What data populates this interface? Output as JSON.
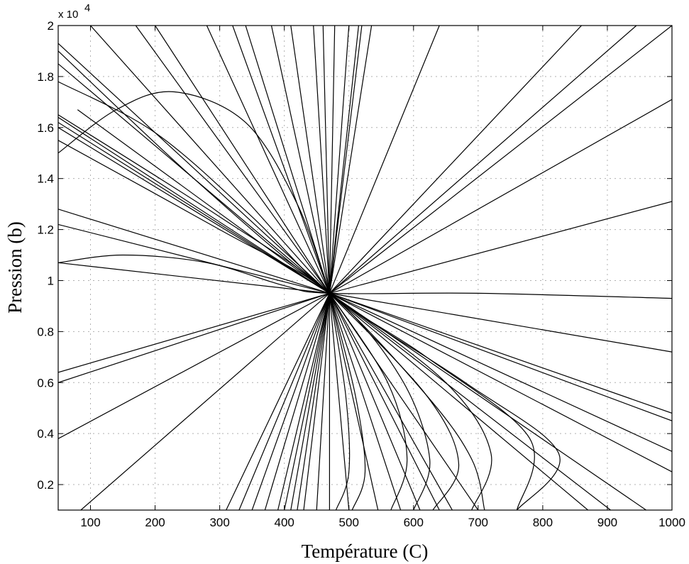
{
  "chart_data": {
    "type": "line",
    "title": "",
    "xlabel": "Température (C)",
    "ylabel": "Pression (b)",
    "y_multiplier_label": "x 10",
    "y_multiplier_exponent": "4",
    "xlim": [
      50,
      1000
    ],
    "ylim": [
      0.1,
      2.0
    ],
    "y_scale": 10000,
    "grid": true,
    "legend": "none",
    "invariant_point": {
      "x": 470,
      "y": 0.95
    },
    "x_ticks": [
      "100",
      "200",
      "300",
      "400",
      "500",
      "600",
      "700",
      "800",
      "900",
      "1000"
    ],
    "x_tick_values": [
      100,
      200,
      300,
      400,
      500,
      600,
      700,
      800,
      900,
      1000
    ],
    "y_ticks": [
      "0.2",
      "0.4",
      "0.6",
      "0.8",
      "1",
      "1.2",
      "1.4",
      "1.6",
      "1.8",
      "2"
    ],
    "y_tick_values": [
      0.2,
      0.4,
      0.6,
      0.8,
      1.0,
      1.2,
      1.4,
      1.6,
      1.8,
      2.0
    ],
    "series": [
      {
        "points": [
          [
            50,
            1.93
          ],
          [
            470,
            0.95
          ],
          [
            905,
            0.1
          ]
        ]
      },
      {
        "points": [
          [
            50,
            1.85
          ],
          [
            470,
            0.95
          ],
          [
            870,
            0.1
          ]
        ]
      },
      {
        "points": [
          [
            50,
            1.64
          ],
          [
            470,
            0.95
          ],
          [
            960,
            0.1
          ]
        ]
      },
      {
        "points": [
          [
            50,
            1.62
          ],
          [
            470,
            0.95
          ],
          [
            1000,
            0.48
          ]
        ]
      },
      {
        "points": [
          [
            50,
            1.6
          ],
          [
            470,
            0.95
          ],
          [
            1000,
            0.45
          ]
        ]
      },
      {
        "points": [
          [
            50,
            1.28
          ],
          [
            470,
            0.95
          ],
          [
            1000,
            0.33
          ]
        ]
      },
      {
        "points": [
          [
            50,
            1.22
          ],
          [
            470,
            0.95
          ],
          [
            1000,
            0.25
          ]
        ]
      },
      {
        "points": [
          [
            50,
            1.07
          ],
          [
            470,
            0.95
          ],
          [
            1000,
            0.72
          ]
        ]
      },
      {
        "points": [
          [
            50,
            0.64
          ],
          [
            470,
            0.95
          ],
          [
            1000,
            1.31
          ]
        ]
      },
      {
        "points": [
          [
            50,
            0.6
          ],
          [
            470,
            0.95
          ],
          [
            1000,
            1.71
          ]
        ]
      },
      {
        "points": [
          [
            50,
            0.38
          ],
          [
            470,
            0.95
          ],
          [
            1000,
            2.0
          ]
        ]
      },
      {
        "points": [
          [
            85,
            0.1
          ],
          [
            470,
            0.95
          ],
          [
            945,
            2.0
          ]
        ]
      },
      {
        "points": [
          [
            310,
            0.1
          ],
          [
            470,
            0.95
          ],
          [
            515,
            2.0
          ]
        ]
      },
      {
        "points": [
          [
            330,
            0.1
          ],
          [
            470,
            0.95
          ],
          [
            520,
            2.0
          ]
        ]
      },
      {
        "points": [
          [
            170,
            2.0
          ],
          [
            470,
            0.95
          ],
          [
            640,
            0.1
          ]
        ]
      },
      {
        "points": [
          [
            100,
            2.0
          ],
          [
            470,
            0.95
          ],
          [
            700,
            0.1
          ]
        ]
      },
      {
        "points": [
          [
            80,
            1.67
          ],
          [
            470,
            0.95
          ],
          [
            660,
            0.1
          ]
        ]
      },
      {
        "points": [
          [
            200,
            2.0
          ],
          [
            470,
            0.95
          ],
          [
            610,
            0.1
          ]
        ]
      },
      {
        "points": [
          [
            280,
            2.0
          ],
          [
            470,
            0.95
          ],
          [
            580,
            0.1
          ]
        ]
      },
      {
        "points": [
          [
            320,
            2.0
          ],
          [
            470,
            0.95
          ],
          [
            545,
            0.1
          ]
        ]
      },
      {
        "points": [
          [
            340,
            2.0
          ],
          [
            470,
            0.95
          ],
          [
            500,
            0.1
          ]
        ]
      },
      {
        "points": [
          [
            380,
            2.0
          ],
          [
            470,
            0.95
          ],
          [
            470,
            0.1
          ]
        ]
      },
      {
        "points": [
          [
            410,
            2.0
          ],
          [
            470,
            0.95
          ],
          [
            450,
            0.1
          ]
        ]
      },
      {
        "points": [
          [
            445,
            2.0
          ],
          [
            470,
            0.95
          ],
          [
            420,
            0.1
          ]
        ]
      },
      {
        "points": [
          [
            460,
            2.0
          ],
          [
            470,
            0.95
          ],
          [
            400,
            0.1
          ]
        ]
      },
      {
        "points": [
          [
            478,
            2.0
          ],
          [
            470,
            0.95
          ],
          [
            390,
            0.1
          ]
        ]
      },
      {
        "points": [
          [
            500,
            2.0
          ],
          [
            470,
            0.95
          ],
          [
            370,
            0.1
          ]
        ]
      },
      {
        "points": [
          [
            535,
            2.0
          ],
          [
            470,
            0.95
          ],
          [
            350,
            0.1
          ]
        ]
      },
      {
        "points": [
          [
            640,
            2.0
          ],
          [
            470,
            0.95
          ],
          [
            430,
            0.1
          ]
        ]
      },
      {
        "points": [
          [
            860,
            2.0
          ],
          [
            470,
            0.95
          ],
          [
            410,
            0.1
          ]
        ]
      },
      {
        "points": [
          [
            50,
            1.5
          ],
          [
            140,
            1.67
          ],
          [
            230,
            1.74
          ],
          [
            340,
            1.62
          ],
          [
            420,
            1.3
          ],
          [
            470,
            0.95
          ]
        ]
      },
      {
        "points": [
          [
            50,
            1.07
          ],
          [
            150,
            1.1
          ],
          [
            280,
            1.07
          ],
          [
            400,
            0.98
          ],
          [
            470,
            0.95
          ],
          [
            700,
            0.95
          ],
          [
            1000,
            0.93
          ]
        ]
      },
      {
        "points": [
          [
            50,
            1.78
          ],
          [
            200,
            1.58
          ],
          [
            350,
            1.25
          ],
          [
            470,
            0.95
          ],
          [
            620,
            0.7
          ],
          [
            780,
            0.38
          ],
          [
            760,
            0.1
          ]
        ]
      },
      {
        "points": [
          [
            50,
            1.9
          ],
          [
            260,
            1.4
          ],
          [
            470,
            0.95
          ],
          [
            680,
            0.6
          ],
          [
            825,
            0.32
          ],
          [
            760,
            0.1
          ]
        ]
      },
      {
        "points": [
          [
            50,
            1.65
          ],
          [
            300,
            1.25
          ],
          [
            470,
            0.95
          ],
          [
            620,
            0.55
          ],
          [
            690,
            0.3
          ],
          [
            710,
            0.1
          ]
        ]
      },
      {
        "points": [
          [
            50,
            1.55
          ],
          [
            300,
            1.2
          ],
          [
            470,
            0.95
          ],
          [
            580,
            0.62
          ],
          [
            625,
            0.3
          ],
          [
            600,
            0.1
          ]
        ]
      },
      {
        "points": [
          [
            470,
            0.95
          ],
          [
            560,
            0.6
          ],
          [
            590,
            0.3
          ],
          [
            565,
            0.1
          ]
        ]
      },
      {
        "points": [
          [
            470,
            0.95
          ],
          [
            510,
            0.55
          ],
          [
            525,
            0.25
          ],
          [
            505,
            0.1
          ]
        ]
      },
      {
        "points": [
          [
            470,
            0.95
          ],
          [
            495,
            0.55
          ],
          [
            500,
            0.25
          ],
          [
            480,
            0.1
          ]
        ]
      },
      {
        "points": [
          [
            470,
            0.95
          ],
          [
            620,
            0.55
          ],
          [
            670,
            0.28
          ],
          [
            630,
            0.1
          ]
        ]
      },
      {
        "points": [
          [
            470,
            0.95
          ],
          [
            650,
            0.6
          ],
          [
            720,
            0.32
          ],
          [
            690,
            0.1
          ]
        ]
      }
    ]
  }
}
